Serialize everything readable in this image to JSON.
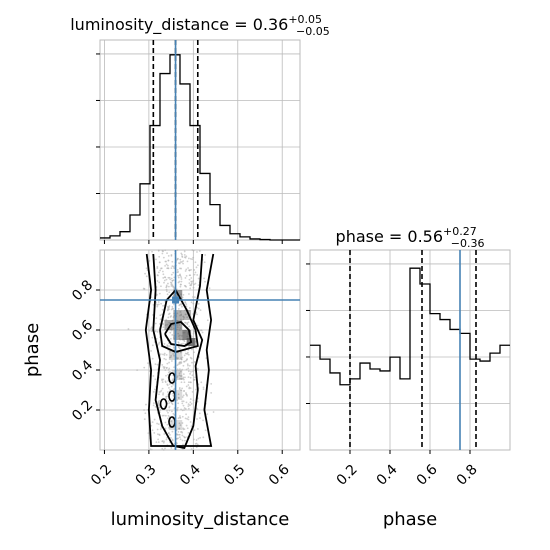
{
  "chart_data": {
    "type": "corner",
    "parameters": [
      {
        "name": "luminosity_distance",
        "xlabel": "luminosity_distance",
        "title_prefix": "luminosity_distance = ",
        "median": "0.36",
        "upper": "+0.05",
        "lower": "−0.05",
        "quantiles": [
          0.31,
          0.36,
          0.41
        ],
        "truth": 0.36,
        "range": [
          0.19,
          0.64
        ],
        "ticks": [
          "0.2",
          "0.3",
          "0.4",
          "0.5",
          "0.6"
        ],
        "tick_values": [
          0.2,
          0.3,
          0.4,
          0.5,
          0.6
        ],
        "hist_edges": [
          0.19,
          0.2125,
          0.235,
          0.2575,
          0.28,
          0.3025,
          0.325,
          0.3475,
          0.37,
          0.3925,
          0.415,
          0.4375,
          0.46,
          0.4825,
          0.505,
          0.5275,
          0.55,
          0.5725,
          0.595,
          0.6175,
          0.64
        ],
        "hist_counts": [
          1,
          2,
          4,
          12,
          27,
          55,
          80,
          89,
          75,
          55,
          32,
          17,
          7,
          3,
          1.5,
          0.5,
          0.2,
          0,
          0,
          0
        ]
      },
      {
        "name": "phase",
        "xlabel": "phase",
        "ylabel": "phase",
        "title_prefix": "phase = ",
        "median": "0.56",
        "upper": "+0.27",
        "lower": "−0.36",
        "quantiles": [
          0.2,
          0.56,
          0.83
        ],
        "truth": 0.75,
        "range": [
          0.0,
          1.0
        ],
        "ticks": [
          "0.2",
          "0.4",
          "0.6",
          "0.8"
        ],
        "tick_values": [
          0.2,
          0.4,
          0.6,
          0.8
        ],
        "hist_edges": [
          0.0,
          0.05,
          0.1,
          0.15,
          0.2,
          0.25,
          0.3,
          0.35,
          0.4,
          0.45,
          0.5,
          0.55,
          0.6,
          0.65,
          0.7,
          0.75,
          0.8,
          0.85,
          0.9,
          0.95,
          1.0
        ],
        "hist_counts": [
          0.53,
          0.46,
          0.39,
          0.33,
          0.36,
          0.44,
          0.41,
          0.4,
          0.47,
          0.36,
          0.92,
          0.84,
          0.69,
          0.66,
          0.61,
          0.59,
          0.46,
          0.45,
          0.49,
          0.53
        ]
      }
    ],
    "joint": {
      "x": "luminosity_distance",
      "y": "phase",
      "truth": [
        0.36,
        0.75
      ],
      "contours": [
        [
          [
            0.336,
            0.58
          ],
          [
            0.35,
            0.53
          ],
          [
            0.38,
            0.52
          ],
          [
            0.395,
            0.54
          ],
          [
            0.39,
            0.6
          ],
          [
            0.372,
            0.64
          ],
          [
            0.35,
            0.63
          ],
          [
            0.336,
            0.58
          ]
        ],
        [
          [
            0.325,
            0.6
          ],
          [
            0.33,
            0.52
          ],
          [
            0.36,
            0.49
          ],
          [
            0.41,
            0.52
          ],
          [
            0.405,
            0.6
          ],
          [
            0.385,
            0.7
          ],
          [
            0.36,
            0.8
          ],
          [
            0.34,
            0.75
          ],
          [
            0.325,
            0.6
          ]
        ],
        [
          [
            0.31,
            0.98
          ],
          [
            0.315,
            0.8
          ],
          [
            0.31,
            0.6
          ],
          [
            0.325,
            0.45
          ],
          [
            0.315,
            0.25
          ],
          [
            0.33,
            0.12
          ],
          [
            0.355,
            0.02
          ],
          [
            0.38,
            0.01
          ],
          [
            0.4,
            0.12
          ],
          [
            0.41,
            0.3
          ],
          [
            0.405,
            0.42
          ],
          [
            0.42,
            0.55
          ],
          [
            0.4,
            0.65
          ],
          [
            0.415,
            0.82
          ],
          [
            0.42,
            0.98
          ]
        ],
        [
          [
            0.295,
            0.98
          ],
          [
            0.305,
            0.8
          ],
          [
            0.293,
            0.6
          ],
          [
            0.305,
            0.4
          ],
          [
            0.3,
            0.2
          ],
          [
            0.305,
            0.02
          ],
          [
            0.44,
            0.02
          ],
          [
            0.425,
            0.2
          ],
          [
            0.435,
            0.4
          ],
          [
            0.43,
            0.5
          ],
          [
            0.44,
            0.65
          ],
          [
            0.43,
            0.8
          ],
          [
            0.445,
            0.98
          ]
        ]
      ],
      "density_cells": [
        {
          "x": 0.355,
          "y": 0.75,
          "w": 0.02,
          "h": 0.05,
          "v": 0.7
        },
        {
          "x": 0.355,
          "y": 0.65,
          "w": 0.02,
          "h": 0.05,
          "v": 0.55
        },
        {
          "x": 0.375,
          "y": 0.65,
          "w": 0.02,
          "h": 0.05,
          "v": 0.5
        },
        {
          "x": 0.335,
          "y": 0.6,
          "w": 0.02,
          "h": 0.05,
          "v": 0.6
        },
        {
          "x": 0.355,
          "y": 0.6,
          "w": 0.02,
          "h": 0.05,
          "v": 0.65
        },
        {
          "x": 0.375,
          "y": 0.55,
          "w": 0.02,
          "h": 0.05,
          "v": 0.85
        },
        {
          "x": 0.355,
          "y": 0.55,
          "w": 0.02,
          "h": 0.05,
          "v": 0.6
        },
        {
          "x": 0.385,
          "y": 0.52,
          "w": 0.02,
          "h": 0.04,
          "v": 0.95
        },
        {
          "x": 0.345,
          "y": 0.45,
          "w": 0.03,
          "h": 0.05,
          "v": 0.3
        },
        {
          "x": 0.355,
          "y": 0.35,
          "w": 0.02,
          "h": 0.05,
          "v": 0.3
        },
        {
          "x": 0.355,
          "y": 0.25,
          "w": 0.02,
          "h": 0.05,
          "v": 0.25
        },
        {
          "x": 0.345,
          "y": 0.1,
          "w": 0.03,
          "h": 0.05,
          "v": 0.25
        }
      ]
    },
    "grid": true,
    "colors": {
      "truth": "#4682b4",
      "hist": "#000000",
      "grid": "#bbbbbb",
      "scatter": "#b0b0b0",
      "density": "#555555"
    }
  }
}
